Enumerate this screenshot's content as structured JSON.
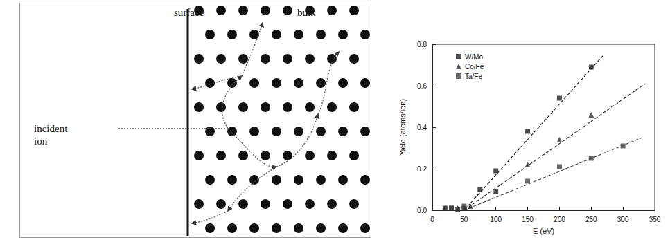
{
  "diagram": {
    "surface_label": "surface",
    "bulk_label": "bulk",
    "incident_label": "incident ion"
  },
  "chart_data": {
    "type": "scatter",
    "x_label": "E (eV)",
    "y_label": "Yield (atoms/ion)",
    "xlim": [
      0,
      350
    ],
    "xticks": [
      0,
      50,
      100,
      150,
      200,
      250,
      300,
      350
    ],
    "ylim": [
      0,
      0.8
    ],
    "yticks": [
      {
        "value": 0,
        "label": "0.0"
      },
      0.2,
      0.4,
      0.6,
      0.8
    ],
    "grid": false,
    "legend": "upper left",
    "series": [
      {
        "name": "W/Mo",
        "color": "#222222",
        "marker": "square",
        "x": [
          20,
          30,
          40,
          50,
          75,
          100,
          150,
          200,
          250
        ],
        "values": [
          0.01,
          0.01,
          0.005,
          0.01,
          0.1,
          0.19,
          0.38,
          0.54,
          0.69
        ],
        "fit_x": [
          50,
          270
        ],
        "fit_values": [
          0,
          0.75
        ],
        "line_style": "dashed"
      },
      {
        "name": "Co/Fe",
        "color": "#333333",
        "marker": "triangle",
        "x": [
          20,
          40,
          60,
          100,
          150,
          200,
          250
        ],
        "values": [
          0.01,
          0.01,
          0.02,
          0.09,
          0.22,
          0.34,
          0.46
        ],
        "fit_x": [
          50,
          335
        ],
        "fit_values": [
          0,
          0.61
        ],
        "line_style": "dashed"
      },
      {
        "name": "Ta/Fe",
        "color": "#444444",
        "marker": "square",
        "x": [
          30,
          50,
          100,
          150,
          200,
          250,
          300
        ],
        "values": [
          0.01,
          0.02,
          0.09,
          0.14,
          0.21,
          0.25,
          0.31
        ],
        "fit_x": [
          50,
          330
        ],
        "fit_values": [
          0,
          0.35
        ],
        "line_style": "dashed"
      }
    ]
  }
}
